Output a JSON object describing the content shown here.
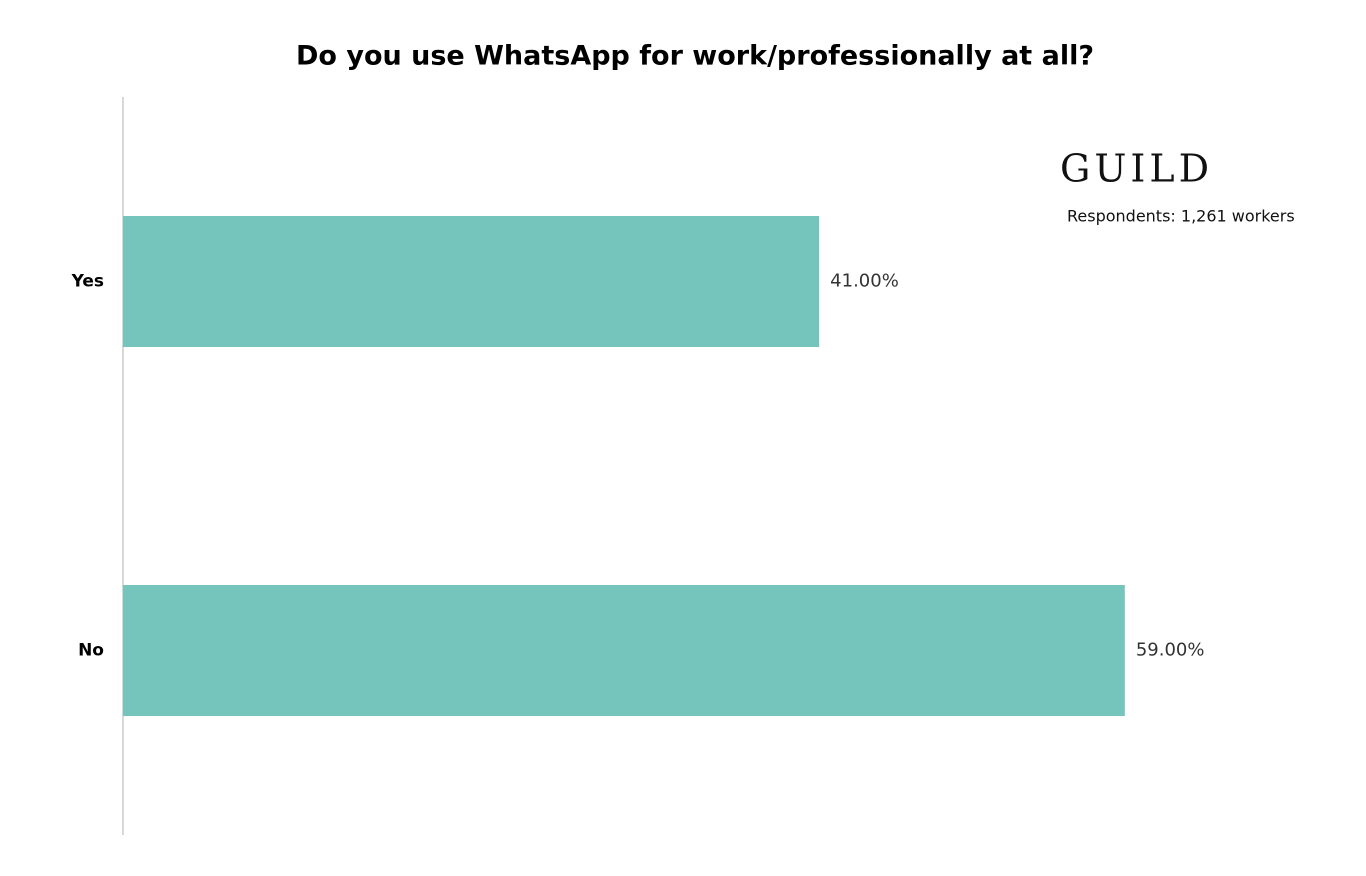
{
  "chart_data": {
    "type": "hbar",
    "title": "Do you use WhatsApp for work/professionally at all?",
    "logo": "GUILD",
    "note": "Respondents: 1,261 workers",
    "categories": [
      "Yes",
      "No"
    ],
    "values": [
      41,
      59
    ],
    "value_labels": [
      "41.00%",
      "59.00%"
    ],
    "color": "#76c5bc"
  }
}
